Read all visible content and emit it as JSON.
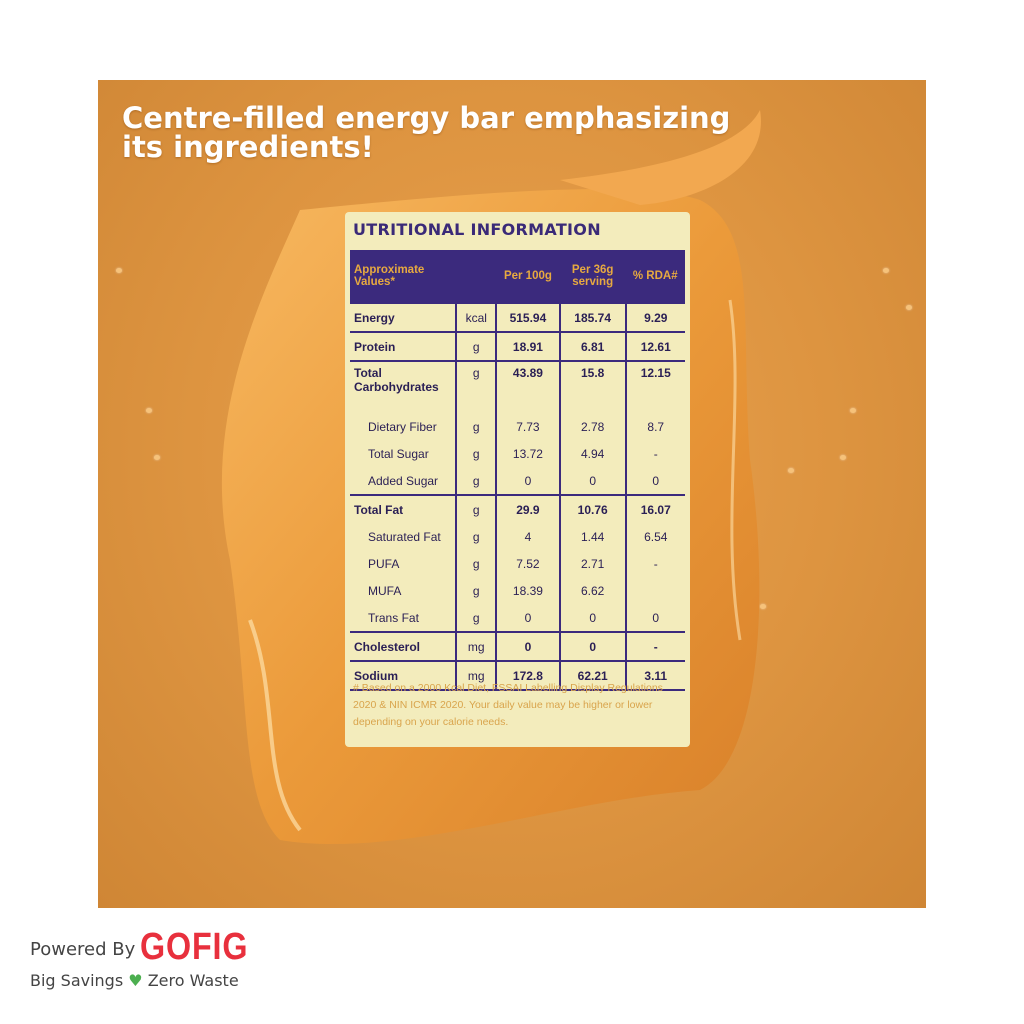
{
  "headline": {
    "line1": "Centre-filled energy bar emphasizing",
    "line2": "its ingredients!"
  },
  "label": {
    "title": "UTRITIONAL INFORMATION",
    "headers": [
      "Approximate Values*",
      "",
      "Per 100g",
      "Per 36g serving",
      "% RDA#"
    ],
    "rows": [
      {
        "name": "Energy",
        "unit": "kcal",
        "per100": "515.94",
        "per36": "185.74",
        "rda": "9.29",
        "major": true
      },
      {
        "name": "Protein",
        "unit": "g",
        "per100": "18.91",
        "per36": "6.81",
        "rda": "12.61",
        "major": true
      },
      {
        "name": "Total Carbohydrates",
        "unit": "g",
        "per100": "43.89",
        "per36": "15.8",
        "rda": "12.15",
        "major": true,
        "tall": true
      },
      {
        "name": "Dietary Fiber",
        "unit": "g",
        "per100": "7.73",
        "per36": "2.78",
        "rda": "8.7",
        "sub": true
      },
      {
        "name": "Total Sugar",
        "unit": "g",
        "per100": "13.72",
        "per36": "4.94",
        "rda": "-",
        "sub": true
      },
      {
        "name": "Added Sugar",
        "unit": "g",
        "per100": "0",
        "per36": "0",
        "rda": "0",
        "sub": true
      },
      {
        "name": "Total Fat",
        "unit": "g",
        "per100": "29.9",
        "per36": "10.76",
        "rda": "16.07",
        "major": true
      },
      {
        "name": "Saturated Fat",
        "unit": "g",
        "per100": "4",
        "per36": "1.44",
        "rda": "6.54",
        "sub": true
      },
      {
        "name": "PUFA",
        "unit": "g",
        "per100": "7.52",
        "per36": "2.71",
        "rda": "-",
        "sub": true
      },
      {
        "name": "MUFA",
        "unit": "g",
        "per100": "18.39",
        "per36": "6.62",
        "rda": "",
        "sub": true
      },
      {
        "name": "Trans Fat",
        "unit": "g",
        "per100": "0",
        "per36": "0",
        "rda": "0",
        "sub": true
      },
      {
        "name": "Cholesterol",
        "unit": "mg",
        "per100": "0",
        "per36": "0",
        "rda": "-",
        "major": true
      },
      {
        "name": "Sodium",
        "unit": "mg",
        "per100": "172.8",
        "per36": "62.21",
        "rda": "3.11",
        "major": true
      }
    ],
    "note": "# Based on a 2000 Kcal Diet, FSSAI Labelling Display Regulations 2020 & NIN ICMR 2020. Your daily value may be higher or lower depending on your calorie needs."
  },
  "footer": {
    "powered": "Powered By",
    "brand": "GOFIG",
    "tag1": "Big Savings",
    "heart": "♥",
    "tag2": "Zero Waste"
  }
}
